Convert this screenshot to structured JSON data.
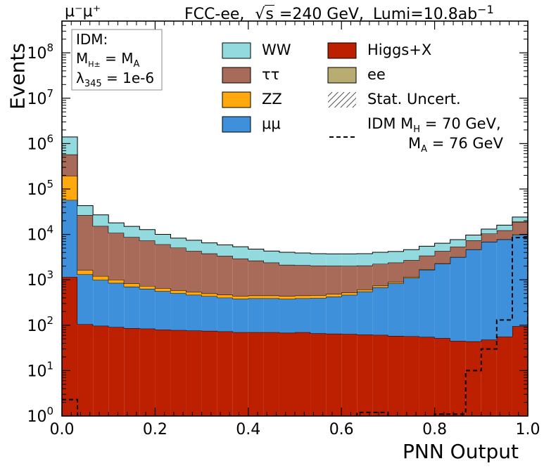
{
  "header": {
    "channel": "μ⁻μ⁺",
    "experiment": "FCC-ee,",
    "sqrt_s": "s",
    "energy": "=240 GeV,",
    "lumi": "Lumi=10.8ab",
    "lumi_exp": "−1"
  },
  "idm_box": {
    "line1": "IDM:",
    "m_charged": "M",
    "m_charged_sub": "H±",
    "eq": " = M",
    "m_a_sub": "A",
    "lambda": "λ",
    "lambda_sub": "345",
    "lambda_val": " = 1e-6"
  },
  "legend": {
    "ww": "WW",
    "tautau": "ττ",
    "zz": "ZZ",
    "mumu": "μμ",
    "higgs": "Higgs+X",
    "ee": "ee",
    "stat": "Stat. Uncert.",
    "idm_line1": "IDM M",
    "idm_line1_sub": "H",
    "idm_line1_rest": " = 70 GeV,",
    "idm_line2": "M",
    "idm_line2_sub": "A",
    "idm_line2_rest": " = 76 GeV"
  },
  "axes": {
    "xlabel": "PNN Output",
    "ylabel": "Events",
    "x_ticks": [
      "0.0",
      "0.2",
      "0.4",
      "0.6",
      "0.8",
      "1.0"
    ],
    "y_tick_base": "10",
    "y_tick_exps": [
      "0",
      "1",
      "2",
      "3",
      "4",
      "5",
      "6",
      "7",
      "8"
    ]
  },
  "colors": {
    "higgs": "#bd1f01",
    "mumu": "#3f90da",
    "zz": "#ffa90e",
    "tautau": "#a96b59",
    "ee": "#b9ac70",
    "ww": "#92dadd",
    "signal": "#000000"
  },
  "chart_data": {
    "type": "bar",
    "stacked": true,
    "log_y": true,
    "xlim": [
      0.0,
      1.0
    ],
    "ylim": [
      1,
      500000000
    ],
    "bin_edges": [
      0.0,
      0.0333,
      0.0667,
      0.1,
      0.1333,
      0.1667,
      0.2,
      0.2333,
      0.2667,
      0.3,
      0.3333,
      0.3667,
      0.4,
      0.4333,
      0.4667,
      0.5,
      0.5333,
      0.5667,
      0.6,
      0.6333,
      0.6667,
      0.7,
      0.7333,
      0.7667,
      0.8,
      0.8333,
      0.8667,
      0.9,
      0.9333,
      0.9667,
      1.0
    ],
    "series": [
      {
        "name": "Higgs+X",
        "key": "higgs",
        "values": [
          1150,
          105,
          97,
          91,
          86,
          84,
          80,
          78,
          76,
          75,
          73,
          70,
          70,
          70,
          68,
          70,
          66,
          65,
          64,
          62,
          61,
          58,
          57,
          55,
          52,
          45,
          44,
          48,
          56,
          95
        ]
      },
      {
        "name": "μμ",
        "key": "mumu",
        "values": [
          56000,
          1210,
          900,
          760,
          620,
          550,
          480,
          430,
          390,
          360,
          330,
          310,
          320,
          320,
          310,
          320,
          330,
          360,
          400,
          490,
          620,
          780,
          1050,
          1600,
          2200,
          3100,
          4600,
          6800,
          7700,
          9700
        ]
      },
      {
        "name": "ZZ",
        "key": "zz",
        "values": [
          139000,
          320,
          210,
          150,
          120,
          95,
          90,
          80,
          70,
          65,
          65,
          60,
          60,
          60,
          60,
          60,
          60,
          60,
          60,
          60,
          60,
          60,
          60,
          50,
          50,
          30,
          40,
          40,
          40,
          400
        ]
      },
      {
        "name": "ττ",
        "key": "tautau",
        "values": [
          380000,
          24900,
          14100,
          9800,
          7900,
          6600,
          5400,
          4500,
          3800,
          3300,
          2900,
          2500,
          2200,
          1950,
          1700,
          1650,
          1600,
          1550,
          1500,
          1450,
          1500,
          1500,
          1550,
          1700,
          2000,
          2200,
          2700,
          3500,
          4500,
          8500
        ]
      },
      {
        "name": "ee",
        "key": "ee",
        "values": [
          0,
          0,
          0,
          0,
          0,
          0,
          0,
          0,
          0,
          0,
          0,
          0,
          0,
          0,
          0,
          0,
          0,
          0,
          0,
          0,
          0,
          0,
          0,
          0,
          0,
          0,
          0,
          0,
          0,
          700
        ]
      },
      {
        "name": "WW",
        "key": "ww",
        "values": [
          825000,
          16500,
          11700,
          7200,
          6300,
          5400,
          4000,
          3200,
          3100,
          2700,
          2500,
          2400,
          2100,
          1900,
          1900,
          1800,
          1700,
          1700,
          1700,
          1700,
          1800,
          1800,
          1900,
          2100,
          2100,
          2300,
          2300,
          2700,
          3700,
          4700
        ]
      }
    ],
    "signal": {
      "name": "IDM M_H = 70 GeV, M_A = 76 GeV",
      "values": [
        2.3,
        0.8,
        0.5,
        0.5,
        0.5,
        0.5,
        0.5,
        0.5,
        0.5,
        0.5,
        0.5,
        0.5,
        0.5,
        0.5,
        0.5,
        0.5,
        0.5,
        0.5,
        0.5,
        1.2,
        1.2,
        0.5,
        0.5,
        0.5,
        1.1,
        1.1,
        10,
        30,
        130,
        8500
      ]
    }
  }
}
